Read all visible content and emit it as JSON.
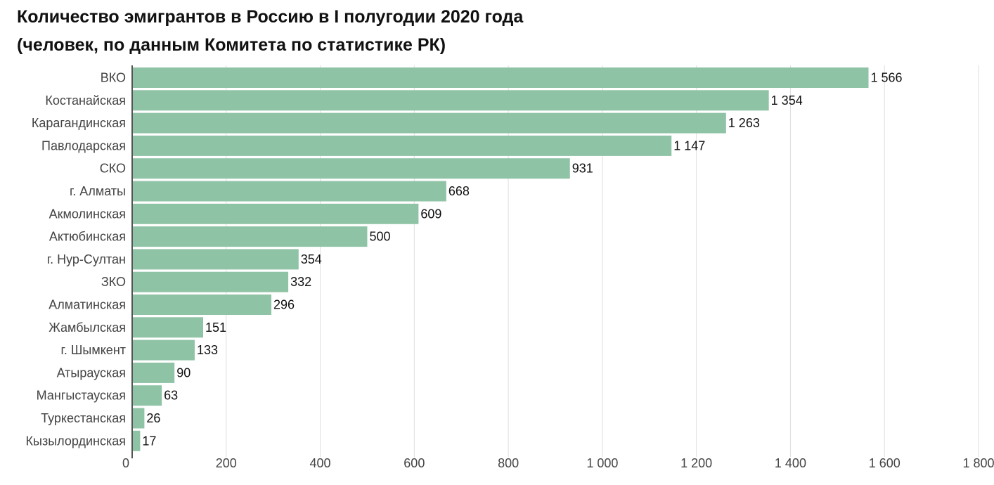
{
  "chart_data": {
    "type": "bar",
    "orientation": "horizontal",
    "title_lines": [
      "Количество эмигрантов в Россию в I полугодии 2020 года",
      "(человек, по данным Комитета по статистике РК)"
    ],
    "categories": [
      "ВКО",
      "Костанайская",
      "Карагандинская",
      "Павлодарская",
      "СКО",
      "г. Алматы",
      "Акмолинская",
      "Актюбинская",
      "г. Нур-Султан",
      "ЗКО",
      "Алматинская",
      "Жамбылская",
      "г. Шымкент",
      "Атырауская",
      "Мангыстауская",
      "Туркестанская",
      "Кызылординская"
    ],
    "values": [
      1566,
      1354,
      1263,
      1147,
      931,
      668,
      609,
      500,
      354,
      332,
      296,
      151,
      133,
      90,
      63,
      26,
      17
    ],
    "value_labels": [
      "1 566",
      "1 354",
      "1 263",
      "1 147",
      "931",
      "668",
      "609",
      "500",
      "354",
      "332",
      "296",
      "151",
      "133",
      "90",
      "63",
      "26",
      "17"
    ],
    "xlim": [
      0,
      1800
    ],
    "ticks": [
      0,
      200,
      400,
      600,
      800,
      1000,
      1200,
      1400,
      1600,
      1800
    ],
    "tick_labels": [
      "0",
      "200",
      "400",
      "600",
      "800",
      "1 000",
      "1 200",
      "1 400",
      "1 600",
      "1 800"
    ],
    "grid": true,
    "colors": {
      "bar": "#8fc3a6",
      "grid": "#dedede",
      "axis": "#555555"
    }
  }
}
